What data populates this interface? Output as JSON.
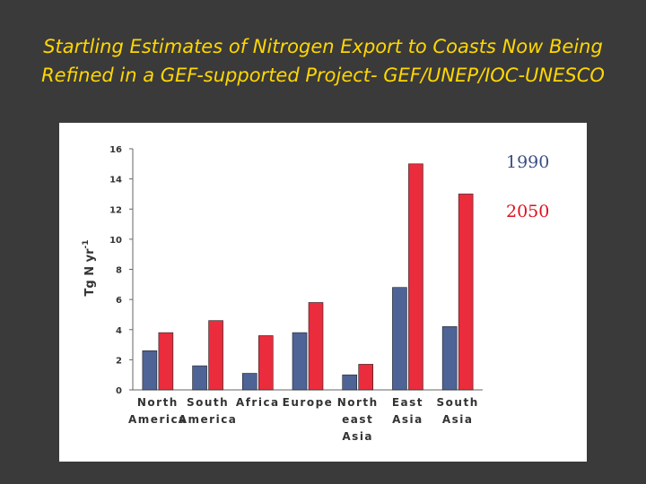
{
  "slide": {
    "title_line1": "Startling Estimates of Nitrogen Export to Coasts Now Being",
    "title_line2": "Refined in a GEF-supported Project- GEF/UNEP/IOC-UNESCO"
  },
  "colors": {
    "background": "#3a3a3a",
    "title": "#ffd700",
    "series_1990": "#4e6396",
    "series_2050": "#ea2c3c",
    "legend_1990": "#3b4f86",
    "legend_2050": "#e0101e"
  },
  "chart_data": {
    "type": "bar",
    "title": "",
    "xlabel": "",
    "ylabel": "Tg N yr",
    "ylabel_superscript": "-1",
    "ylim": [
      0,
      16
    ],
    "yticks": [
      "0",
      "2",
      "4",
      "6",
      "8",
      "10",
      "12",
      "14",
      "16"
    ],
    "categories": [
      [
        "North",
        "America"
      ],
      [
        "South",
        "America"
      ],
      [
        "Africa"
      ],
      [
        "Europe"
      ],
      [
        "North",
        "east",
        "Asia"
      ],
      [
        "East",
        "Asia"
      ],
      [
        "South",
        "Asia"
      ]
    ],
    "series": [
      {
        "name": "1990",
        "values": [
          2.6,
          1.6,
          1.1,
          3.8,
          1.0,
          6.8,
          4.2
        ]
      },
      {
        "name": "2050",
        "values": [
          3.8,
          4.6,
          3.6,
          5.8,
          1.7,
          15.0,
          13.0
        ]
      }
    ],
    "legend_placement": "right",
    "grid": false
  }
}
